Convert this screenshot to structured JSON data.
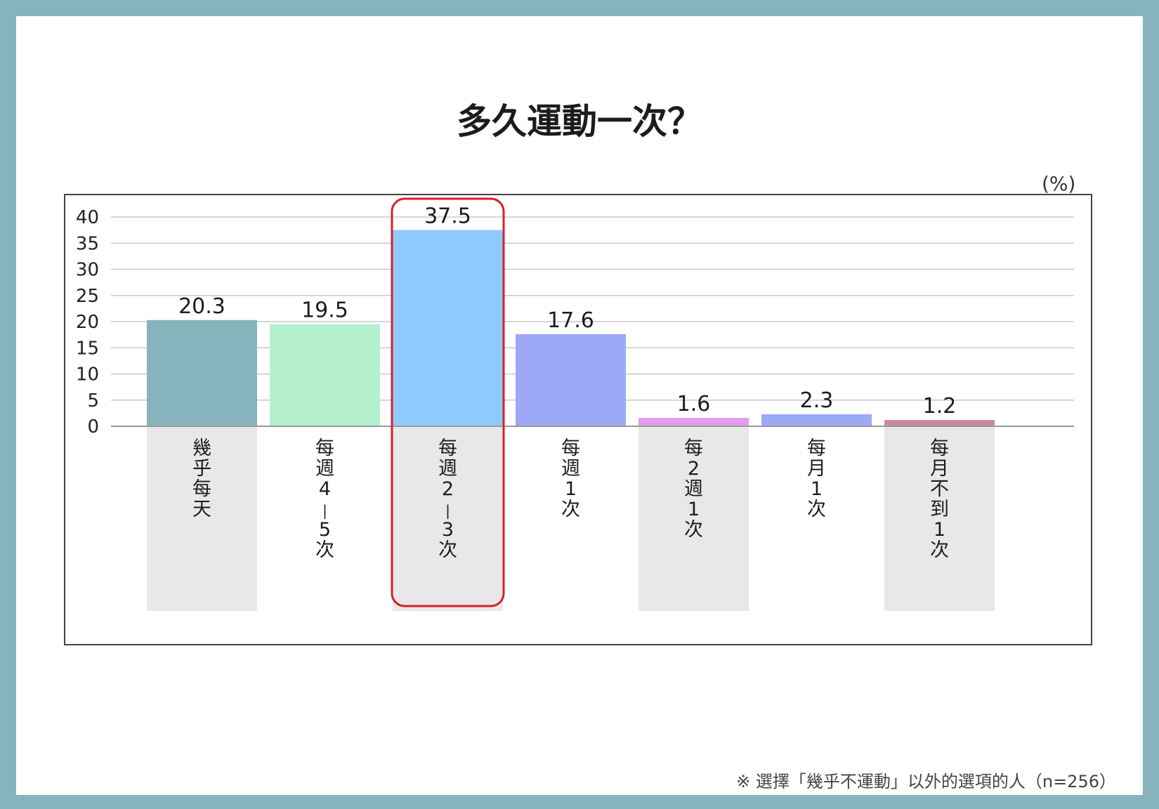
{
  "title": "多久運動一次？",
  "unit_label": "(%)",
  "footnote": "※ 選擇「幾乎不運動」以外的選項的人（n=256）",
  "chart_data": {
    "type": "bar",
    "title": "多久運動一次？",
    "ylabel": "(%)",
    "xlabel": "",
    "ylim": [
      0,
      40
    ],
    "yticks": [
      0,
      5,
      10,
      15,
      20,
      25,
      30,
      35,
      40
    ],
    "grid": true,
    "categories": [
      "幾乎每天",
      "每週4-5次",
      "每週2-3次",
      "每週1次",
      "每2週1次",
      "每月1次",
      "每月不到1次"
    ],
    "category_label_lines": [
      [
        "幾",
        "乎",
        "每",
        "天"
      ],
      [
        "每",
        "週",
        "4",
        "|",
        "5",
        "次"
      ],
      [
        "每",
        "週",
        "2",
        "|",
        "3",
        "次"
      ],
      [
        "每",
        "週",
        "1",
        "次"
      ],
      [
        "每",
        "2",
        "週",
        "1",
        "次"
      ],
      [
        "每",
        "月",
        "1",
        "次"
      ],
      [
        "每",
        "月",
        "不",
        "到",
        "1",
        "次"
      ]
    ],
    "values": [
      20.3,
      19.5,
      37.5,
      17.6,
      1.6,
      2.3,
      1.2
    ],
    "value_labels": [
      "20.3",
      "19.5",
      "37.5",
      "17.6",
      "1.6",
      "2.3",
      "1.2"
    ],
    "colors": [
      "#87b4bc",
      "#b5f1cf",
      "#8ecaff",
      "#9da9f7",
      "#e29bee",
      "#9da9f7",
      "#c98b9a"
    ],
    "label_band_shaded": [
      true,
      false,
      true,
      false,
      true,
      false,
      true
    ],
    "highlight_index": 2,
    "highlight_color": "#d81f2a"
  }
}
